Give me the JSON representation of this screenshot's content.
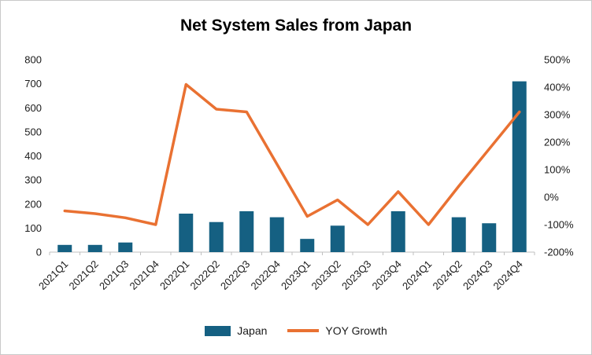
{
  "chart_data": {
    "type": "combo",
    "title": "Net System Sales from Japan",
    "categories": [
      "2021Q1",
      "2021Q2",
      "2021Q3",
      "2021Q4",
      "2022Q1",
      "2022Q2",
      "2022Q3",
      "2022Q4",
      "2023Q1",
      "2023Q2",
      "2023Q3",
      "2023Q4",
      "2024Q1",
      "2024Q2",
      "2024Q3",
      "2024Q4"
    ],
    "series": [
      {
        "name": "Japan",
        "type": "bar",
        "axis": "left",
        "color": "#156082",
        "values": [
          30,
          30,
          40,
          0,
          160,
          125,
          170,
          145,
          55,
          110,
          0,
          170,
          0,
          145,
          120,
          710
        ]
      },
      {
        "name": "YOY Growth",
        "type": "line",
        "axis": "right",
        "color": "#E97132",
        "unit": "%",
        "values": [
          -50,
          -60,
          -75,
          -100,
          410,
          320,
          310,
          120,
          -70,
          -10,
          -100,
          20,
          -100,
          40,
          175,
          310
        ]
      }
    ],
    "left_axis": {
      "min": 0,
      "max": 800,
      "step": 100,
      "ticks": [
        "0",
        "100",
        "200",
        "300",
        "400",
        "500",
        "600",
        "700",
        "800"
      ]
    },
    "right_axis": {
      "min": -200,
      "max": 500,
      "step": 100,
      "ticks": [
        "-200%",
        "-100%",
        "0%",
        "100%",
        "200%",
        "300%",
        "400%",
        "500%"
      ]
    },
    "grid": false,
    "legend_position": "bottom",
    "x_label_rotation_deg": 45,
    "axis_line_color": "#BFBFBF"
  }
}
